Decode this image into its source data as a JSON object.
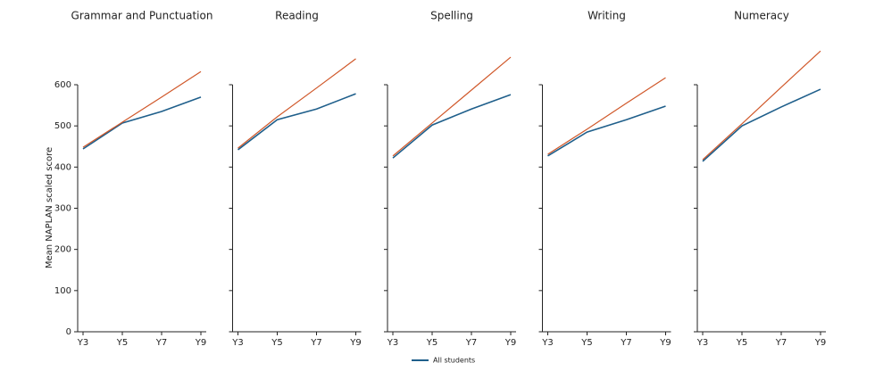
{
  "chart_data": [
    {
      "type": "line",
      "title": "Grammar and Punctuation",
      "ylabel": "Mean NAPLAN scaled score",
      "categories": [
        "Y3",
        "Y5",
        "Y7",
        "Y9"
      ],
      "ylim": [
        0,
        600
      ],
      "yticks": [
        0,
        100,
        200,
        300,
        400,
        500,
        600
      ],
      "series": [
        {
          "name": "All students",
          "color": "#1f5f8b",
          "values": [
            444,
            507,
            535,
            570
          ]
        },
        {
          "color": "#d0582a",
          "values": [
            448,
            509,
            570,
            632
          ]
        }
      ]
    },
    {
      "type": "line",
      "title": "Reading",
      "categories": [
        "Y3",
        "Y5",
        "Y7",
        "Y9"
      ],
      "ylim": [
        0,
        600
      ],
      "yticks": [
        0,
        100,
        200,
        300,
        400,
        500,
        600
      ],
      "series": [
        {
          "color": "#1f5f8b",
          "values": [
            442,
            515,
            541,
            578
          ]
        },
        {
          "color": "#d0582a",
          "values": [
            446,
            522,
            592,
            663
          ]
        }
      ]
    },
    {
      "type": "line",
      "title": "Spelling",
      "categories": [
        "Y3",
        "Y5",
        "Y7",
        "Y9"
      ],
      "ylim": [
        0,
        600
      ],
      "yticks": [
        0,
        100,
        200,
        300,
        400,
        500,
        600
      ],
      "series": [
        {
          "color": "#1f5f8b",
          "values": [
            422,
            502,
            541,
            576
          ]
        },
        {
          "color": "#d0582a",
          "values": [
            427,
            507,
            587,
            667
          ]
        }
      ]
    },
    {
      "type": "line",
      "title": "Writing",
      "categories": [
        "Y3",
        "Y5",
        "Y7",
        "Y9"
      ],
      "ylim": [
        0,
        600
      ],
      "yticks": [
        0,
        100,
        200,
        300,
        400,
        500,
        600
      ],
      "series": [
        {
          "color": "#1f5f8b",
          "values": [
            427,
            485,
            515,
            548
          ]
        },
        {
          "color": "#d0582a",
          "values": [
            431,
            492,
            555,
            617
          ]
        }
      ]
    },
    {
      "type": "line",
      "title": "Numeracy",
      "categories": [
        "Y3",
        "Y5",
        "Y7",
        "Y9"
      ],
      "ylim": [
        0,
        600
      ],
      "yticks": [
        0,
        100,
        200,
        300,
        400,
        500,
        600
      ],
      "series": [
        {
          "color": "#1f5f8b",
          "values": [
            414,
            500,
            546,
            589
          ]
        },
        {
          "color": "#d0582a",
          "values": [
            418,
            505,
            594,
            682
          ]
        }
      ]
    }
  ]
}
